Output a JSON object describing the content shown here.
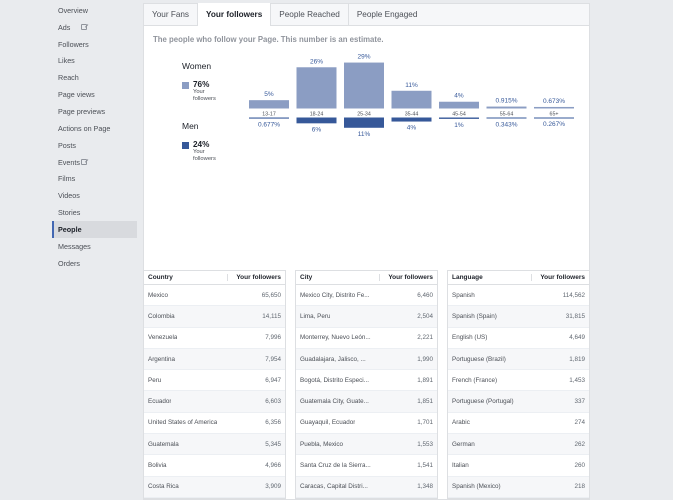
{
  "sidebar": {
    "items": [
      {
        "label": "Overview"
      },
      {
        "label": "Ads",
        "external": true
      },
      {
        "label": "Followers"
      },
      {
        "label": "Likes"
      },
      {
        "label": "Reach"
      },
      {
        "label": "Page views"
      },
      {
        "label": "Page previews"
      },
      {
        "label": "Actions on Page"
      },
      {
        "label": "Posts"
      },
      {
        "label": "Events",
        "external": true
      },
      {
        "label": "Films"
      },
      {
        "label": "Videos"
      },
      {
        "label": "Stories"
      },
      {
        "label": "People",
        "active": true
      },
      {
        "label": "Messages"
      },
      {
        "label": "Orders"
      }
    ]
  },
  "tabs": [
    {
      "label": "Your Fans"
    },
    {
      "label": "Your followers",
      "active": true
    },
    {
      "label": "People Reached"
    },
    {
      "label": "People Engaged"
    }
  ],
  "subtitle": "The people who follow your Page. This number is an estimate.",
  "demographics": {
    "women": {
      "title": "Women",
      "pct": "76%",
      "sub1": "Your",
      "sub2": "followers",
      "color": "#8b9dc3"
    },
    "men": {
      "title": "Men",
      "pct": "24%",
      "sub1": "Your",
      "sub2": "followers",
      "color": "#365899"
    }
  },
  "chart_data": {
    "type": "bar",
    "categories": [
      "13-17",
      "18-24",
      "25-34",
      "35-44",
      "45-54",
      "55-64",
      "65+"
    ],
    "series": [
      {
        "name": "Women",
        "values": [
          5,
          26,
          29,
          11,
          4,
          0.915,
          0.673
        ],
        "labels": [
          "5%",
          "26%",
          "29%",
          "11%",
          "4%",
          "0.915%",
          "0.673%"
        ],
        "color": "#8b9dc3"
      },
      {
        "name": "Men",
        "values": [
          0.677,
          6,
          11,
          4,
          1,
          0.343,
          0.267
        ],
        "labels": [
          "0.677%",
          "6%",
          "11%",
          "4%",
          "1%",
          "0.343%",
          "0.267%"
        ],
        "color": "#365899"
      }
    ],
    "ylim": [
      0,
      30
    ]
  },
  "tables": {
    "country": {
      "headers": [
        "Country",
        "Your followers"
      ],
      "rows": [
        [
          "Mexico",
          "65,650"
        ],
        [
          "Colombia",
          "14,115"
        ],
        [
          "Venezuela",
          "7,996"
        ],
        [
          "Argentina",
          "7,954"
        ],
        [
          "Peru",
          "6,947"
        ],
        [
          "Ecuador",
          "6,603"
        ],
        [
          "United States of America",
          "6,356"
        ],
        [
          "Guatemala",
          "5,345"
        ],
        [
          "Bolivia",
          "4,966"
        ],
        [
          "Costa Rica",
          "3,909"
        ]
      ]
    },
    "city": {
      "headers": [
        "City",
        "Your followers"
      ],
      "rows": [
        [
          "Mexico City, Distrito Fe...",
          "6,460"
        ],
        [
          "Lima, Peru",
          "2,504"
        ],
        [
          "Monterrey, Nuevo León...",
          "2,221"
        ],
        [
          "Guadalajara, Jalisco, ...",
          "1,990"
        ],
        [
          "Bogotá, Distrito Especi...",
          "1,891"
        ],
        [
          "Guatemala City, Guate...",
          "1,851"
        ],
        [
          "Guayaquil, Ecuador",
          "1,701"
        ],
        [
          "Puebla, Mexico",
          "1,553"
        ],
        [
          "Santa Cruz de la Sierra...",
          "1,541"
        ],
        [
          "Caracas, Capital Distri...",
          "1,348"
        ]
      ]
    },
    "language": {
      "headers": [
        "Language",
        "Your followers"
      ],
      "rows": [
        [
          "Spanish",
          "114,562"
        ],
        [
          "Spanish (Spain)",
          "31,815"
        ],
        [
          "English (US)",
          "4,649"
        ],
        [
          "Portuguese (Brazil)",
          "1,819"
        ],
        [
          "French (France)",
          "1,453"
        ],
        [
          "Portuguese (Portugal)",
          "337"
        ],
        [
          "Arabic",
          "274"
        ],
        [
          "German",
          "262"
        ],
        [
          "Italian",
          "260"
        ],
        [
          "Spanish (Mexico)",
          "218"
        ]
      ]
    }
  }
}
